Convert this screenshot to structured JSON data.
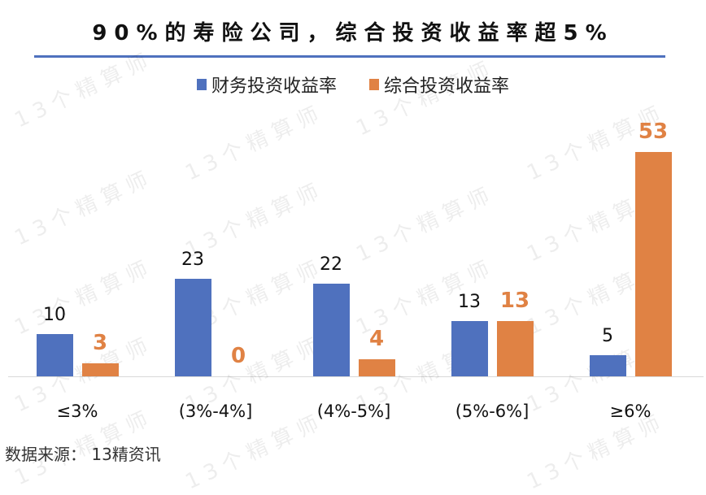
{
  "title": "90%的寿险公司，综合投资收益率超5%",
  "legend": [
    {
      "label": "财务投资收益率",
      "color": "#4f71be"
    },
    {
      "label": "综合投资收益率",
      "color": "#e08244"
    }
  ],
  "source": "数据来源： 13精资讯",
  "watermark": "13个精算师",
  "chart_data": {
    "type": "bar",
    "title": "90%的寿险公司，综合投资收益率超5%",
    "categories": [
      "≤3%",
      "(3%-4%]",
      "(4%-5%]",
      "(5%-6%]",
      "≥6%"
    ],
    "series": [
      {
        "name": "财务投资收益率",
        "color": "#4f71be",
        "values": [
          10,
          23,
          22,
          13,
          5
        ]
      },
      {
        "name": "综合投资收益率",
        "color": "#e08244",
        "values": [
          3,
          0,
          4,
          13,
          53
        ]
      }
    ],
    "xlabel": "",
    "ylabel": "",
    "grid": false,
    "legend_position": "top",
    "data_labels": true
  }
}
